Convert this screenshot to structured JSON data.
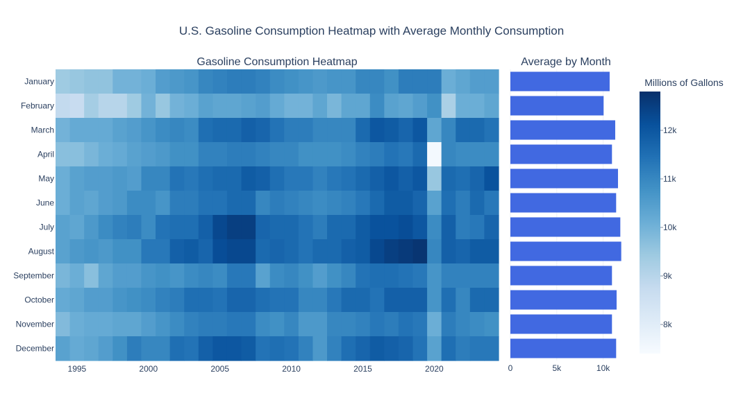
{
  "figure": {
    "title": "U.S. Gasoline Consumption Heatmap with Average Monthly Consumption"
  },
  "colors": {
    "bar": "#4169e1",
    "colorscale": [
      "#f7fbff",
      "#deebf7",
      "#c6dbef",
      "#9ecae1",
      "#6baed6",
      "#4292c6",
      "#2171b5",
      "#08519c",
      "#08306b"
    ]
  },
  "chart_data": [
    {
      "type": "heatmap",
      "title": "Gasoline Consumption Heatmap",
      "years": [
        1994,
        1995,
        1996,
        1997,
        1998,
        1999,
        2000,
        2001,
        2002,
        2003,
        2004,
        2005,
        2006,
        2007,
        2008,
        2009,
        2010,
        2011,
        2012,
        2013,
        2014,
        2015,
        2016,
        2017,
        2018,
        2019,
        2020,
        2021,
        2022,
        2023,
        2024
      ],
      "months": [
        "January",
        "February",
        "March",
        "April",
        "May",
        "June",
        "July",
        "August",
        "September",
        "October",
        "November",
        "December"
      ],
      "x_ticks": [
        1995,
        2000,
        2005,
        2010,
        2015,
        2020
      ],
      "x_tick_labels": [
        "1995",
        "2000",
        "2005",
        "2010",
        "2015",
        "2020"
      ],
      "zmin": 7400,
      "zmax": 12800,
      "values": [
        [
          9400,
          9500,
          9600,
          9600,
          10000,
          10000,
          10100,
          10500,
          10600,
          10700,
          11000,
          11100,
          11200,
          11200,
          11100,
          10900,
          10800,
          10700,
          10600,
          10700,
          10700,
          11000,
          11000,
          10800,
          11200,
          11200,
          11200,
          10100,
          10300,
          10500,
          10500
        ],
        [
          8800,
          8700,
          9300,
          9000,
          9000,
          9400,
          10000,
          9500,
          10000,
          10100,
          10400,
          10300,
          10300,
          10400,
          10500,
          10200,
          10000,
          10000,
          10300,
          9900,
          10300,
          10300,
          10900,
          10400,
          10300,
          10500,
          10800,
          9200,
          10100,
          10100,
          10300
        ],
        [
          10000,
          10200,
          10200,
          10200,
          10400,
          10500,
          10700,
          10900,
          11000,
          10900,
          11500,
          11600,
          11600,
          11800,
          11700,
          11400,
          11200,
          11200,
          11000,
          11000,
          11000,
          11600,
          12000,
          11900,
          11700,
          12000,
          10300,
          11000,
          11600,
          11600,
          11400
        ],
        [
          9700,
          9700,
          9900,
          10100,
          10200,
          10400,
          10500,
          10600,
          10800,
          10800,
          11100,
          11100,
          11200,
          11200,
          11100,
          11000,
          11000,
          10800,
          10800,
          10800,
          10900,
          11100,
          11200,
          11400,
          11300,
          11600,
          7500,
          11000,
          10900,
          10900,
          10900
        ],
        [
          10100,
          10400,
          10500,
          10500,
          10600,
          10500,
          11000,
          11000,
          11400,
          11300,
          11500,
          11600,
          11600,
          11900,
          11800,
          11500,
          11300,
          11300,
          11100,
          11300,
          11400,
          11600,
          11800,
          12000,
          11800,
          12000,
          9500,
          11600,
          11500,
          11700,
          12100
        ],
        [
          10100,
          10400,
          10300,
          10500,
          10600,
          10900,
          10900,
          10700,
          11200,
          11200,
          11400,
          11400,
          11600,
          11600,
          11000,
          11200,
          11100,
          11000,
          10900,
          11000,
          11100,
          11300,
          11600,
          11900,
          11900,
          11700,
          10400,
          11500,
          11200,
          11600,
          11300
        ],
        [
          10400,
          10300,
          10600,
          10900,
          11100,
          11200,
          10900,
          11400,
          11500,
          11500,
          11800,
          12300,
          12500,
          12500,
          11700,
          11600,
          11600,
          11400,
          11200,
          11600,
          11600,
          11900,
          12100,
          12100,
          12200,
          12000,
          10900,
          11800,
          11200,
          11300,
          11700
        ],
        [
          10400,
          10600,
          10700,
          10600,
          10800,
          10800,
          11300,
          11300,
          11800,
          11900,
          11700,
          12200,
          12300,
          12300,
          11600,
          11700,
          11600,
          11400,
          11600,
          11600,
          11800,
          11900,
          12300,
          12500,
          12600,
          12700,
          11000,
          11800,
          11700,
          11900,
          11900
        ],
        [
          9900,
          10100,
          9700,
          10300,
          10500,
          10500,
          10700,
          10800,
          10700,
          10900,
          11000,
          10900,
          11300,
          11300,
          10400,
          10900,
          11000,
          10800,
          10500,
          10800,
          11000,
          11400,
          11500,
          11500,
          11400,
          11300,
          10700,
          11100,
          11100,
          11100,
          11100
        ],
        [
          10200,
          10300,
          10500,
          10500,
          10700,
          10800,
          10900,
          11100,
          11200,
          11500,
          11500,
          11400,
          11700,
          11700,
          11500,
          11400,
          11400,
          11000,
          11000,
          11300,
          11600,
          11600,
          11400,
          11800,
          11800,
          11800,
          10700,
          11500,
          11000,
          11600,
          11600
        ],
        [
          9800,
          10100,
          10200,
          10200,
          10300,
          10300,
          10500,
          10700,
          10900,
          11100,
          11200,
          11200,
          11300,
          11300,
          10900,
          10800,
          11000,
          10600,
          10600,
          11000,
          11000,
          11100,
          11300,
          11200,
          11400,
          11300,
          10100,
          11200,
          11000,
          10900,
          10800
        ],
        [
          10400,
          10200,
          10300,
          10500,
          10800,
          11200,
          11000,
          11000,
          11500,
          11400,
          11800,
          12000,
          12000,
          11900,
          11400,
          11500,
          11400,
          11100,
          10600,
          11100,
          11500,
          11700,
          11900,
          11800,
          11700,
          11400,
          10400,
          11500,
          11200,
          11300,
          11300
        ]
      ]
    },
    {
      "type": "bar",
      "title": "Average by Month",
      "orientation": "horizontal",
      "categories": [
        "January",
        "February",
        "March",
        "April",
        "May",
        "June",
        "July",
        "August",
        "September",
        "October",
        "November",
        "December"
      ],
      "values": [
        10700,
        10050,
        11300,
        10950,
        11600,
        11400,
        11850,
        11950,
        10950,
        11450,
        10950,
        11400
      ],
      "xlim": [
        0,
        12200
      ],
      "x_ticks": [
        0,
        5000,
        10000
      ],
      "x_tick_labels": [
        "0",
        "5k",
        "10k"
      ]
    },
    {
      "type": "colorbar",
      "title": "Millions of Gallons",
      "ticks": [
        8000,
        9000,
        10000,
        11000,
        12000
      ],
      "tick_labels": [
        "8k",
        "9k",
        "10k",
        "11k",
        "12k"
      ]
    }
  ]
}
